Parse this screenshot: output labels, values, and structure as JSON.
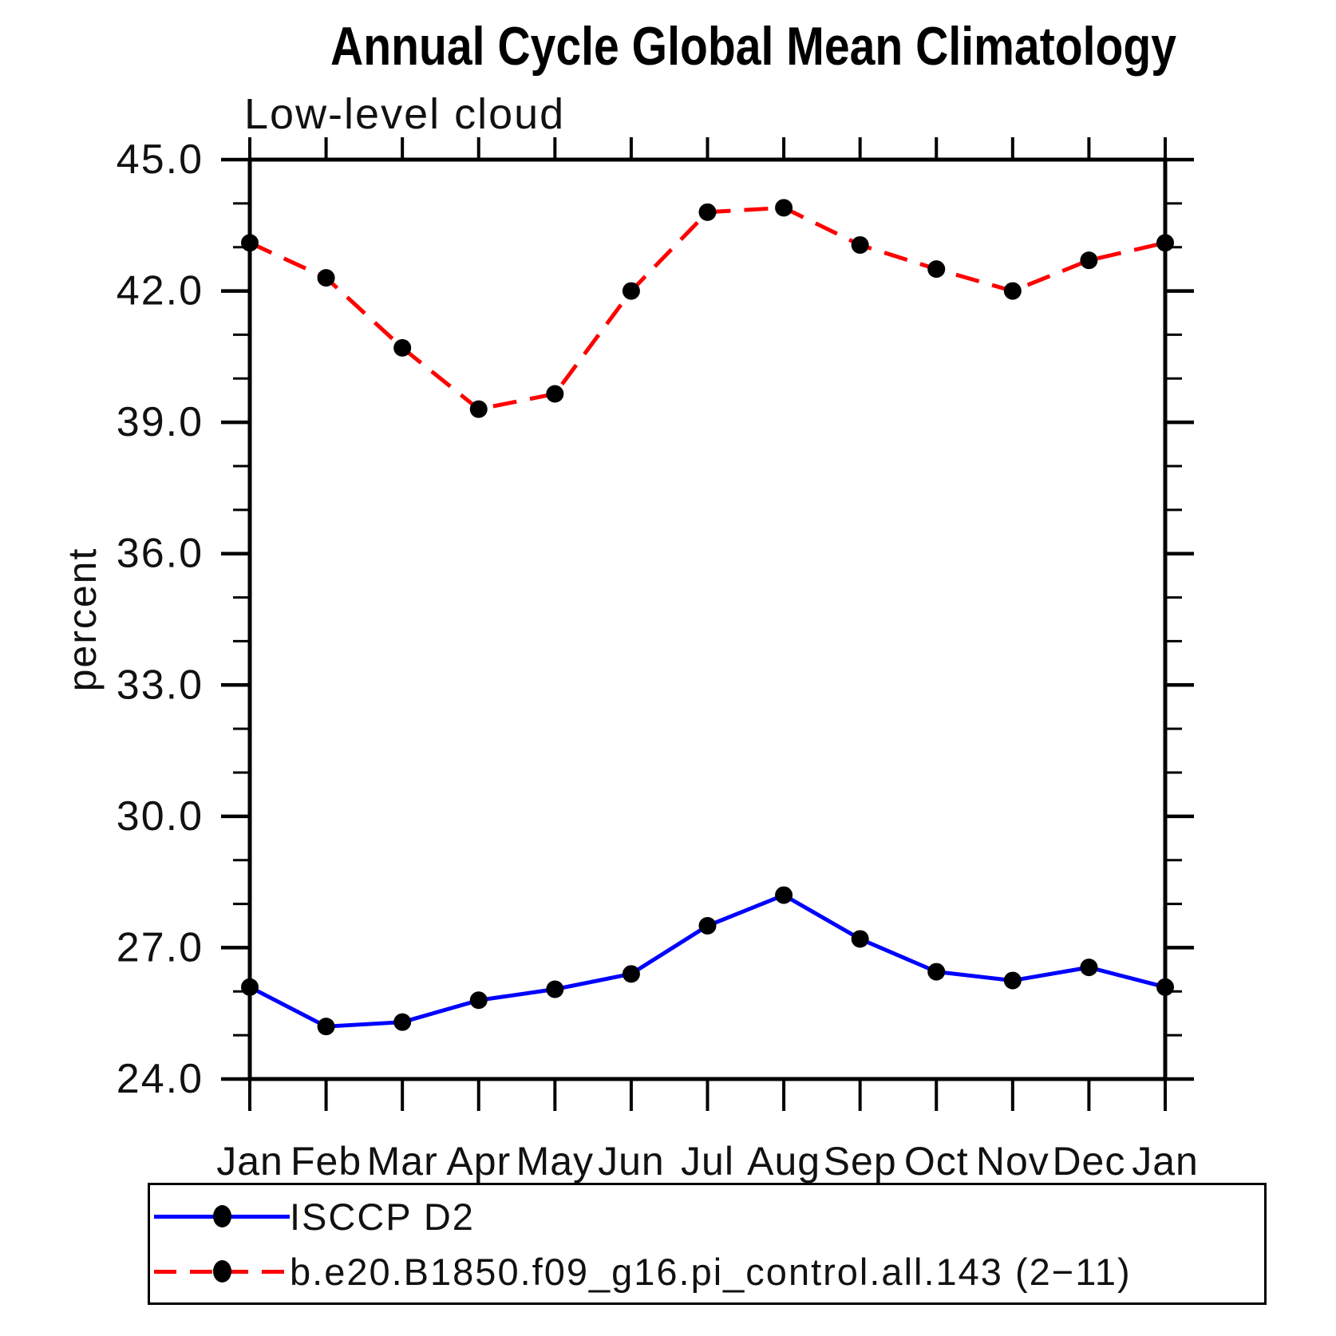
{
  "title": "Annual Cycle Global Mean Climatology",
  "subtitle": "Low-level cloud",
  "ylabel": "percent",
  "chart_data": {
    "type": "line",
    "title": "Annual Cycle Global Mean Climatology",
    "subtitle": "Low-level cloud",
    "xlabel": "",
    "ylabel": "percent",
    "categories": [
      "Jan",
      "Feb",
      "Mar",
      "Apr",
      "May",
      "Jun",
      "Jul",
      "Aug",
      "Sep",
      "Oct",
      "Nov",
      "Dec",
      "Jan"
    ],
    "ylim": [
      24.0,
      45.0
    ],
    "ytick_major_step": 3.0,
    "ytick_minor_step": 1.0,
    "ytick_labels": [
      "24.0",
      "27.0",
      "30.0",
      "33.0",
      "36.0",
      "39.0",
      "42.0",
      "45.0"
    ],
    "grid": false,
    "legend_position": "bottom",
    "marker_color": "#000000",
    "series": [
      {
        "name": "ISCCP D2",
        "color": "#0000ff",
        "line_style": "solid",
        "marker": "circle",
        "values": [
          26.1,
          25.2,
          25.3,
          25.8,
          26.05,
          26.4,
          27.5,
          28.2,
          27.2,
          26.45,
          26.25,
          26.55,
          26.1
        ]
      },
      {
        "name": "b.e20.B1850.f09_g16.pi_control.all.143 (2−11)",
        "color": "#ff0000",
        "line_style": "dashed",
        "marker": "circle",
        "values": [
          43.1,
          42.3,
          40.7,
          39.3,
          39.65,
          42.0,
          43.8,
          43.9,
          43.05,
          42.5,
          42.0,
          42.7,
          43.1
        ]
      }
    ]
  }
}
